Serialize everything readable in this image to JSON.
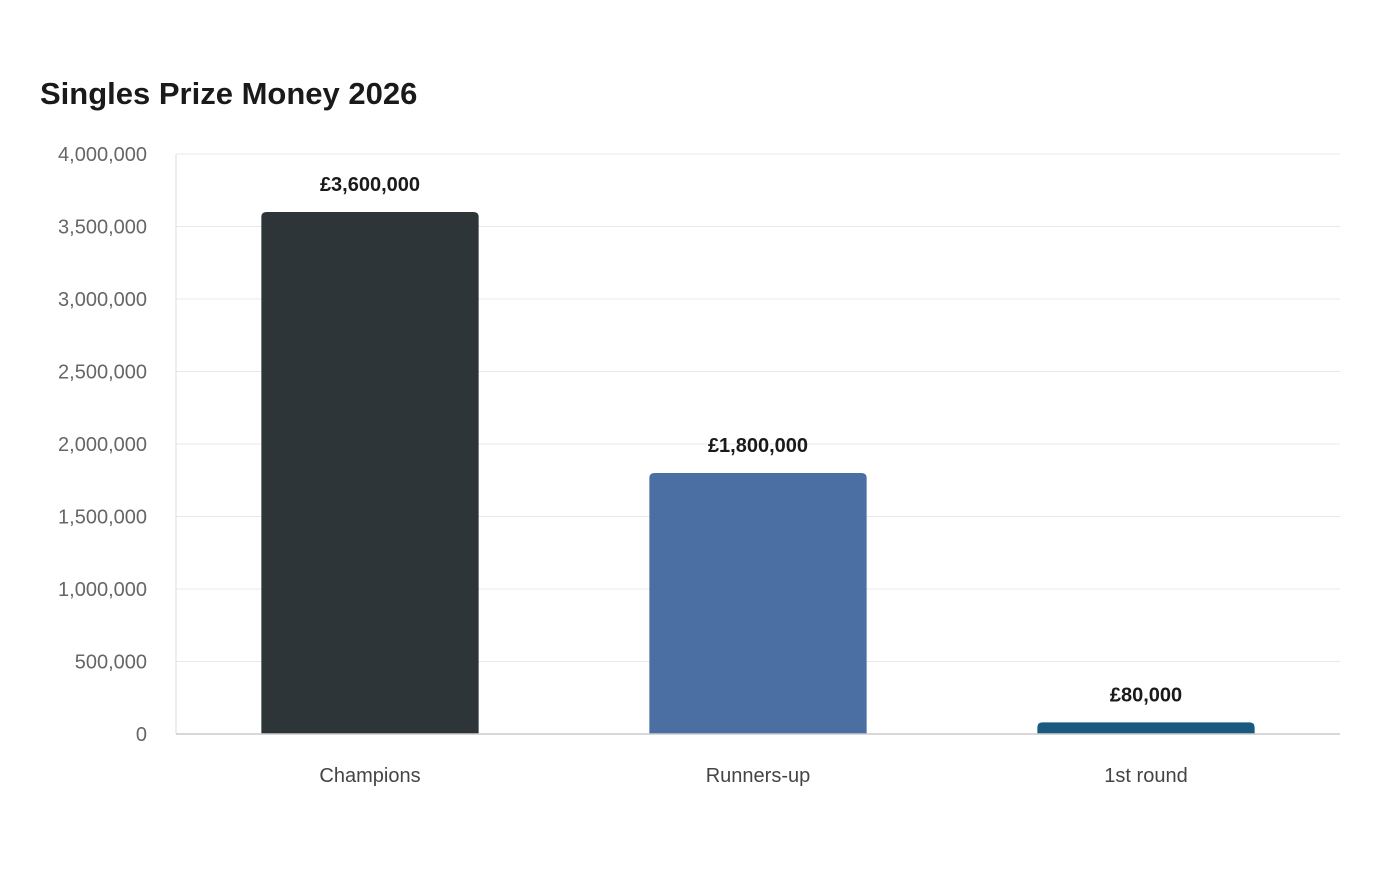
{
  "chart_data": {
    "type": "bar",
    "title": "Singles Prize Money 2026",
    "xlabel": "",
    "ylabel": "",
    "categories": [
      "Champions",
      "Runners-up",
      "1st round"
    ],
    "values": [
      3600000,
      1800000,
      80000
    ],
    "data_labels": [
      "£3,600,000",
      "£1,800,000",
      "£80,000"
    ],
    "bar_colors": [
      "#2e3538",
      "#4c6fa3",
      "#1a5a80"
    ],
    "ylim": [
      0,
      4000000
    ],
    "yticks": [
      0,
      500000,
      1000000,
      1500000,
      2000000,
      2500000,
      3000000,
      3500000,
      4000000
    ],
    "ytick_labels": [
      "0",
      "500,000",
      "1,000,000",
      "1,500,000",
      "2,000,000",
      "2,500,000",
      "3,000,000",
      "3,500,000",
      "4,000,000"
    ],
    "grid": true,
    "legend": "none"
  }
}
